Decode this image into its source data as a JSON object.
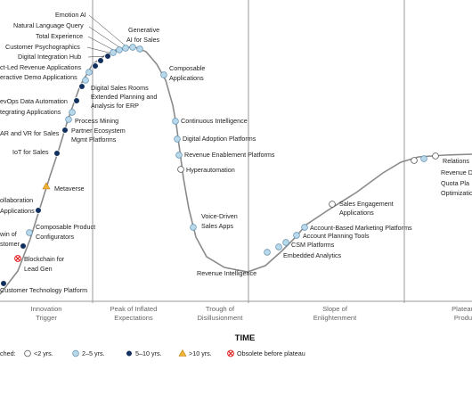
{
  "phases": [
    {
      "line1": "Innovation",
      "line2": "Trigger"
    },
    {
      "line1": "Peak of Inflated",
      "line2": "Expectations"
    },
    {
      "line1": "Trough of",
      "line2": "Disillusionment"
    },
    {
      "line1": "Slope of",
      "line2": "Enlightenment"
    },
    {
      "line1": "Plateau",
      "line2": "Produ"
    }
  ],
  "x_axis_label": "TIME",
  "legend": {
    "prefix": "ched:",
    "items": [
      {
        "key": "lt2",
        "label": "<2 yrs."
      },
      {
        "key": "y2to5",
        "label": "2–5 yrs."
      },
      {
        "key": "y5to10",
        "label": "5–10 yrs."
      },
      {
        "key": "gt10",
        "label": ">10 yrs."
      },
      {
        "key": "obsolete",
        "label": "Obsolete before plateau"
      }
    ]
  },
  "marker_colors": {
    "lt2": "#ffffff",
    "y2to5": "#b9d9ea",
    "y5to10": "#12305e",
    "gt10": "#f2b233",
    "obsolete": "#e02020",
    "curve": "#8a8a8a"
  },
  "technologies": [
    {
      "name": "Emotion AI",
      "cat": "y2to5"
    },
    {
      "name": "Natural Language Query",
      "cat": "y2to5"
    },
    {
      "name": "Total Experience",
      "cat": "y2to5"
    },
    {
      "name": "Customer Psychographics",
      "cat": "y2to5"
    },
    {
      "name": "Digital Integration Hub",
      "cat": "y5to10"
    },
    {
      "name": "ct-Led Revenue Applications",
      "cat": "y5to10"
    },
    {
      "name": "eractive Demo Applications",
      "cat": "y5to10"
    },
    {
      "name": "Digital Sales Rooms",
      "cat": "y2to5"
    },
    {
      "name": "Extended Planning and",
      "cat": "y2to5"
    },
    {
      "name": "evOps Data Automation",
      "cat": "y5to10"
    },
    {
      "name": "tegrating Applications",
      "cat": "y5to10"
    },
    {
      "name": "Process Mining",
      "cat": "y2to5"
    },
    {
      "name": "Partner Ecosystem",
      "cat": "y2to5"
    },
    {
      "name": "AR and VR for Sales",
      "cat": "y5to10"
    },
    {
      "name": "IoT for Sales",
      "cat": "y5to10"
    },
    {
      "name": "Metaverse",
      "cat": "gt10"
    },
    {
      "name": "ollaboration",
      "cat": "y5to10"
    },
    {
      "name": "Composable Product",
      "cat": "y2to5"
    },
    {
      "name": "win of",
      "cat": "y5to10"
    },
    {
      "name": "Blockchain for",
      "cat": "obsolete"
    },
    {
      "name": "Customer Technology Platform",
      "cat": "y5to10"
    },
    {
      "name": "Generative",
      "cat": "y2to5"
    },
    {
      "name": "Composable",
      "cat": "y2to5"
    },
    {
      "name": "Continuous Intelligence",
      "cat": "y2to5"
    },
    {
      "name": "Digital Adoption Platforms",
      "cat": "y2to5"
    },
    {
      "name": "Revenue Enablement Platforms",
      "cat": "y2to5"
    },
    {
      "name": "Hyperautomation",
      "cat": "lt2"
    },
    {
      "name": "Voice-Driven",
      "cat": "y2to5"
    },
    {
      "name": "Revenue Intelligence",
      "cat": "y2to5"
    },
    {
      "name": "Sales Engagement",
      "cat": "lt2"
    },
    {
      "name": "Account-Based Marketing Platforms",
      "cat": "y2to5"
    },
    {
      "name": "Account Planning Tools",
      "cat": "y2to5"
    },
    {
      "name": "CSM Platforms",
      "cat": "y2to5"
    },
    {
      "name": "Embedded Analytics",
      "cat": "y2to5"
    },
    {
      "name": "Relations",
      "cat": "lt2"
    },
    {
      "name": "Revenue D",
      "cat": "y2to5"
    },
    {
      "name": "Quota Pla",
      "cat": "lt2"
    }
  ],
  "label_extras": {
    "extended_planning_l2": "Analysis for ERP",
    "partner_ecosystem_l2": "Mgmt Platforms",
    "collaboration_l2": "Applications",
    "composable_product_l2": "Configurators",
    "twin_l2": "stomer",
    "blockchain_l2": "Lead Gen",
    "generative_l2": "AI for Sales",
    "composable_l2": "Applications",
    "voice_l2": "Sales Apps",
    "sales_engagement_l2": "Applications",
    "quota_l2": "Optimizatio"
  }
}
